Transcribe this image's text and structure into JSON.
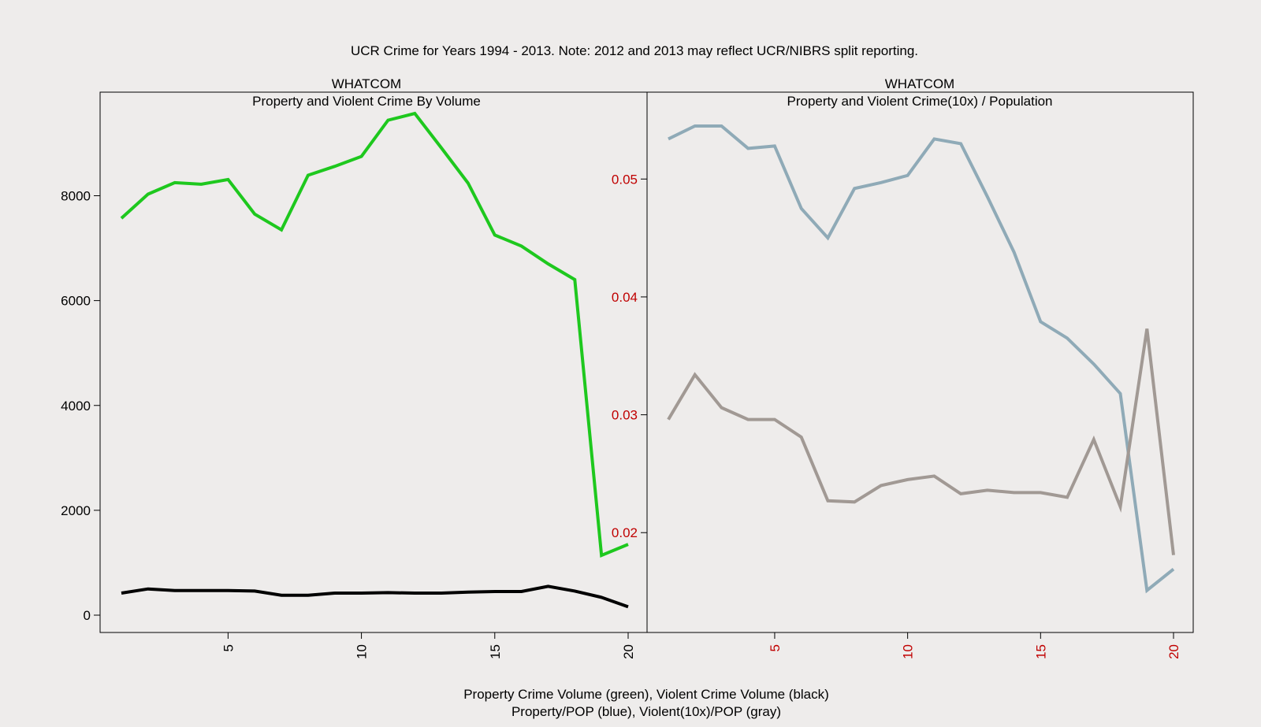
{
  "title": "UCR Crime for Years 1994 - 2013. Note: 2012 and 2013 may reflect UCR/NIBRS split reporting.",
  "footer": {
    "line1": "Property Crime Volume (green), Violent Crime Volume (black)",
    "line2": "Property/POP (blue), Violent(10x)/POP (gray)"
  },
  "colors": {
    "property_volume": "#1ec81e",
    "violent_volume": "#000000",
    "property_pop": "#8faab7",
    "violent_pop": "#a19994",
    "right_axis_ticks": "#c00000"
  },
  "chart_data": [
    {
      "type": "line",
      "title": "WHATCOM",
      "subtitle": "Property and Violent Crime By Volume",
      "xlim": [
        1,
        20
      ],
      "ylim": [
        0,
        9600
      ],
      "grid": false,
      "x_ticks": [
        "5",
        "10",
        "15",
        "20"
      ],
      "y_ticks": [
        "0",
        "2000",
        "4000",
        "6000",
        "8000"
      ],
      "x": [
        1,
        2,
        3,
        4,
        5,
        6,
        7,
        8,
        9,
        10,
        11,
        12,
        13,
        14,
        15,
        16,
        17,
        18,
        19,
        20
      ],
      "series": [
        {
          "name": "Property Crime Volume",
          "color": "#1ec81e",
          "values": [
            7570,
            8030,
            8250,
            8220,
            8310,
            7650,
            7350,
            8390,
            8560,
            8750,
            9440,
            9570,
            8910,
            8240,
            7250,
            7040,
            6700,
            6400,
            1140,
            1350
          ]
        },
        {
          "name": "Violent Crime Volume",
          "color": "#000000",
          "values": [
            420,
            500,
            470,
            470,
            470,
            460,
            380,
            380,
            420,
            420,
            430,
            420,
            420,
            440,
            450,
            450,
            550,
            460,
            340,
            160
          ]
        }
      ]
    },
    {
      "type": "line",
      "title": "WHATCOM",
      "subtitle": "Property and Violent Crime(10x) / Population",
      "xlim": [
        1,
        20
      ],
      "ylim": [
        0.013,
        0.0557
      ],
      "grid": false,
      "x_ticks": [
        "5",
        "10",
        "15",
        "20"
      ],
      "y_ticks": [
        "0.02",
        "0.03",
        "0.04",
        "0.05"
      ],
      "x": [
        1,
        2,
        3,
        4,
        5,
        6,
        7,
        8,
        9,
        10,
        11,
        12,
        13,
        14,
        15,
        16,
        17,
        18,
        19,
        20
      ],
      "series": [
        {
          "name": "Property/POP",
          "color": "#8faab7",
          "values": [
            0.0534,
            0.0545,
            0.0545,
            0.0526,
            0.0528,
            0.0475,
            0.045,
            0.0492,
            0.0497,
            0.0503,
            0.0534,
            0.053,
            0.0485,
            0.0438,
            0.0379,
            0.0365,
            0.0343,
            0.0318,
            0.0151,
            0.0169
          ]
        },
        {
          "name": "Violent(10x)/POP",
          "color": "#a19994",
          "values": [
            0.0296,
            0.0334,
            0.0306,
            0.0296,
            0.0296,
            0.0281,
            0.0227,
            0.0226,
            0.024,
            0.0245,
            0.0248,
            0.0233,
            0.0236,
            0.0234,
            0.0234,
            0.023,
            0.0279,
            0.0222,
            0.0373,
            0.0181
          ]
        }
      ]
    }
  ]
}
